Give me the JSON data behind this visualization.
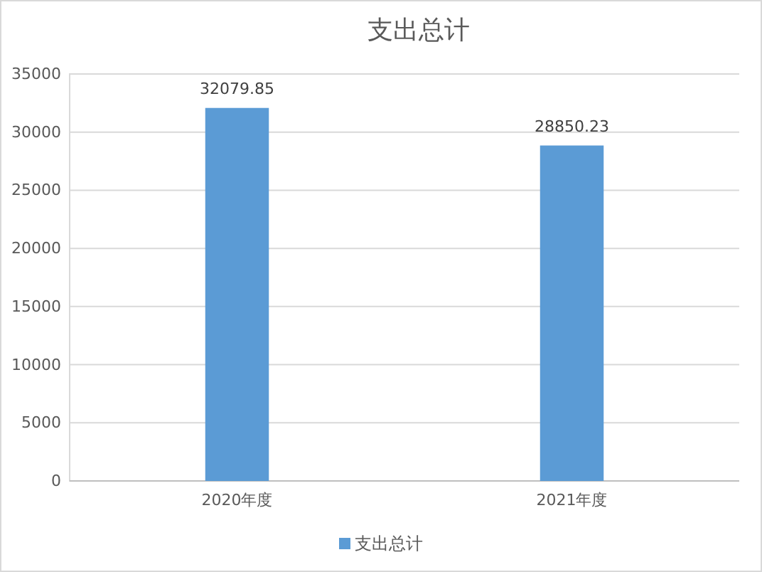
{
  "chart_data": {
    "type": "bar",
    "title": "支出总计",
    "categories": [
      "2020年度",
      "2021年度"
    ],
    "series": [
      {
        "name": "支出总计",
        "color": "#5b9bd5",
        "values": [
          32079.85,
          28850.23
        ]
      }
    ],
    "ylim": [
      0,
      35000
    ],
    "yticks": [
      0,
      5000,
      10000,
      15000,
      20000,
      25000,
      30000,
      35000
    ],
    "grid": "y",
    "legend": "bottom",
    "data_labels": true
  }
}
